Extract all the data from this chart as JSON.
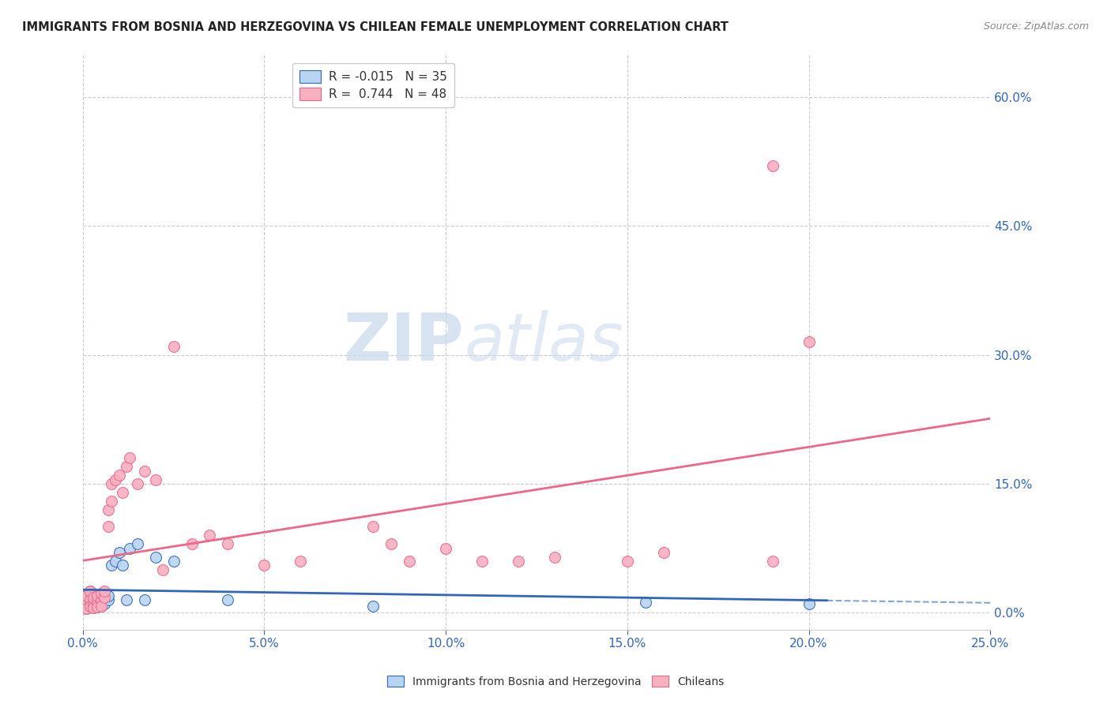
{
  "title": "IMMIGRANTS FROM BOSNIA AND HERZEGOVINA VS CHILEAN FEMALE UNEMPLOYMENT CORRELATION CHART",
  "source": "Source: ZipAtlas.com",
  "xmin": 0.0,
  "xmax": 0.25,
  "ymin": -0.02,
  "ymax": 0.65,
  "watermark_zip": "ZIP",
  "watermark_atlas": "atlas",
  "legend_label1": "Immigrants from Bosnia and Herzegovina",
  "legend_label2": "Chileans",
  "series1_color": "#b8d4f0",
  "series2_color": "#f8b0c0",
  "trendline1_color": "#3366bb",
  "trendline2_color": "#ee6688",
  "grid_color": "#cccccc",
  "background_color": "#ffffff",
  "title_color": "#222222",
  "axis_tick_color": "#3366bb",
  "right_axis_color": "#3366bb",
  "bosnia_x": [
    0.001,
    0.001,
    0.001,
    0.002,
    0.002,
    0.002,
    0.002,
    0.003,
    0.003,
    0.003,
    0.003,
    0.004,
    0.004,
    0.004,
    0.005,
    0.005,
    0.005,
    0.006,
    0.006,
    0.007,
    0.007,
    0.008,
    0.009,
    0.01,
    0.011,
    0.012,
    0.013,
    0.015,
    0.017,
    0.02,
    0.025,
    0.04,
    0.08,
    0.155,
    0.2
  ],
  "bosnia_y": [
    0.01,
    0.02,
    0.005,
    0.015,
    0.008,
    0.025,
    0.012,
    0.01,
    0.018,
    0.006,
    0.022,
    0.012,
    0.02,
    0.007,
    0.015,
    0.022,
    0.008,
    0.018,
    0.01,
    0.015,
    0.02,
    0.055,
    0.06,
    0.07,
    0.055,
    0.015,
    0.075,
    0.08,
    0.015,
    0.065,
    0.06,
    0.015,
    0.008,
    0.012,
    0.01
  ],
  "chilean_x": [
    0.001,
    0.001,
    0.001,
    0.002,
    0.002,
    0.002,
    0.003,
    0.003,
    0.003,
    0.004,
    0.004,
    0.004,
    0.005,
    0.005,
    0.005,
    0.006,
    0.006,
    0.007,
    0.007,
    0.008,
    0.008,
    0.009,
    0.01,
    0.011,
    0.012,
    0.013,
    0.015,
    0.017,
    0.02,
    0.022,
    0.025,
    0.03,
    0.035,
    0.04,
    0.05,
    0.06,
    0.08,
    0.085,
    0.09,
    0.1,
    0.11,
    0.12,
    0.13,
    0.15,
    0.16,
    0.19,
    0.2,
    0.19
  ],
  "chilean_y": [
    0.01,
    0.02,
    0.005,
    0.015,
    0.008,
    0.025,
    0.01,
    0.018,
    0.006,
    0.012,
    0.02,
    0.007,
    0.015,
    0.022,
    0.008,
    0.018,
    0.025,
    0.1,
    0.12,
    0.13,
    0.15,
    0.155,
    0.16,
    0.14,
    0.17,
    0.18,
    0.15,
    0.165,
    0.155,
    0.05,
    0.31,
    0.08,
    0.09,
    0.08,
    0.055,
    0.06,
    0.1,
    0.08,
    0.06,
    0.075,
    0.06,
    0.06,
    0.065,
    0.06,
    0.07,
    0.06,
    0.315,
    0.52
  ],
  "xtick_positions": [
    0.0,
    0.05,
    0.1,
    0.15,
    0.2,
    0.25
  ],
  "xtick_labels": [
    "0.0%",
    "5.0%",
    "10.0%",
    "15.0%",
    "20.0%",
    "25.0%"
  ],
  "ytick_positions": [
    0.0,
    0.15,
    0.3,
    0.45,
    0.6
  ],
  "ytick_labels": [
    "0.0%",
    "15.0%",
    "30.0%",
    "45.0%",
    "60.0%"
  ]
}
